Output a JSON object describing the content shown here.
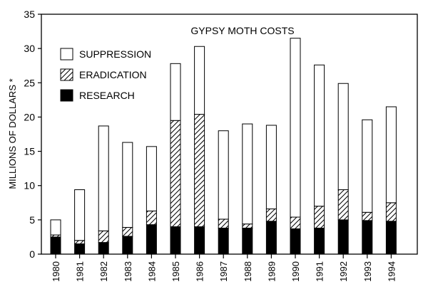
{
  "chart_data": {
    "type": "bar",
    "stacked": true,
    "title": "GYPSY MOTH COSTS",
    "ylabel": "MILLIONS OF DOLLARS *",
    "xlabel": "",
    "ylim": [
      0,
      35
    ],
    "yticks": [
      "0",
      "5",
      "10",
      "15",
      "20",
      "25",
      "30",
      "35"
    ],
    "categories": [
      "1980",
      "1981",
      "1982",
      "1983",
      "1984",
      "1985",
      "1986",
      "1987",
      "1988",
      "1989",
      "1990",
      "1991",
      "1992",
      "1993",
      "1994"
    ],
    "legend_position": "top-left",
    "grid": false,
    "series": [
      {
        "name": "RESEARCH",
        "fill": "solid",
        "color": "#000000",
        "values": [
          2.5,
          1.5,
          1.7,
          2.6,
          4.3,
          4.0,
          4.0,
          3.8,
          3.8,
          4.8,
          3.7,
          3.8,
          5.0,
          4.9,
          4.8
        ]
      },
      {
        "name": "ERADICATION",
        "fill": "hatched",
        "color": "#000000",
        "values": [
          0.3,
          0.5,
          1.7,
          1.3,
          2.0,
          15.5,
          16.4,
          1.3,
          0.6,
          1.8,
          1.7,
          3.2,
          4.4,
          1.2,
          2.7
        ]
      },
      {
        "name": "SUPPRESSION",
        "fill": "open",
        "color": "#ffffff",
        "values": [
          2.2,
          7.4,
          15.3,
          12.4,
          9.4,
          8.3,
          9.9,
          12.9,
          14.6,
          12.2,
          26.1,
          20.6,
          15.5,
          13.5,
          14.0
        ]
      }
    ]
  }
}
